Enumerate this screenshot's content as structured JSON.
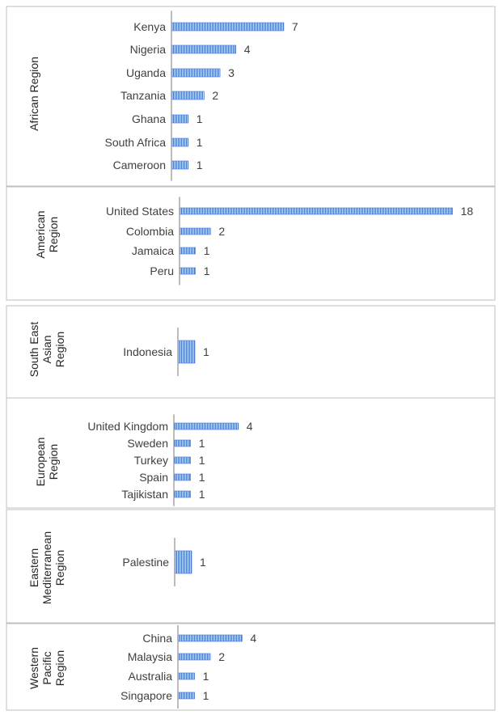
{
  "chart_data": [
    {
      "type": "bar",
      "orientation": "horizontal",
      "region": "African Region",
      "categories": [
        "Kenya",
        "Nigeria",
        "Uganda",
        "Tanzania",
        "Ghana",
        "South Africa",
        "Cameroon"
      ],
      "values": [
        7,
        4,
        3,
        2,
        1,
        1,
        1
      ],
      "data_labels": [
        "7",
        "4",
        "3",
        "2",
        "1",
        "1",
        "1"
      ]
    },
    {
      "type": "bar",
      "orientation": "horizontal",
      "region": "American Region",
      "categories": [
        "United States",
        "Colombia",
        "Jamaica",
        "Peru"
      ],
      "values": [
        18,
        2,
        1,
        1
      ],
      "data_labels": [
        "18",
        "2",
        "1",
        "1"
      ]
    },
    {
      "type": "bar",
      "orientation": "horizontal",
      "region": "South East Asian Region",
      "categories": [
        "Indonesia"
      ],
      "values": [
        1
      ],
      "data_labels": [
        "1"
      ]
    },
    {
      "type": "bar",
      "orientation": "horizontal",
      "region": "European Region",
      "categories": [
        "United Kingdom",
        "Sweden",
        "Turkey",
        "Spain",
        "Tajikistan"
      ],
      "values": [
        4,
        1,
        1,
        1,
        1
      ],
      "data_labels": [
        "4",
        "1",
        "1",
        "1",
        "1"
      ]
    },
    {
      "type": "bar",
      "orientation": "horizontal",
      "region": "Eastern Mediterranean Region",
      "categories": [
        "Palestine"
      ],
      "values": [
        1
      ],
      "data_labels": [
        "1"
      ]
    },
    {
      "type": "bar",
      "orientation": "horizontal",
      "region": "Western Pacific Region",
      "categories": [
        "China",
        "Malaysia",
        "Australia",
        "Singapore"
      ],
      "values": [
        4,
        2,
        1,
        1
      ],
      "data_labels": [
        "4",
        "2",
        "1",
        "1"
      ]
    }
  ],
  "colors": {
    "bar": "#4472c4",
    "bar_stripe": "#ffffff",
    "axis": "#a6a6a6",
    "panel_border": "#bfbfbf"
  }
}
